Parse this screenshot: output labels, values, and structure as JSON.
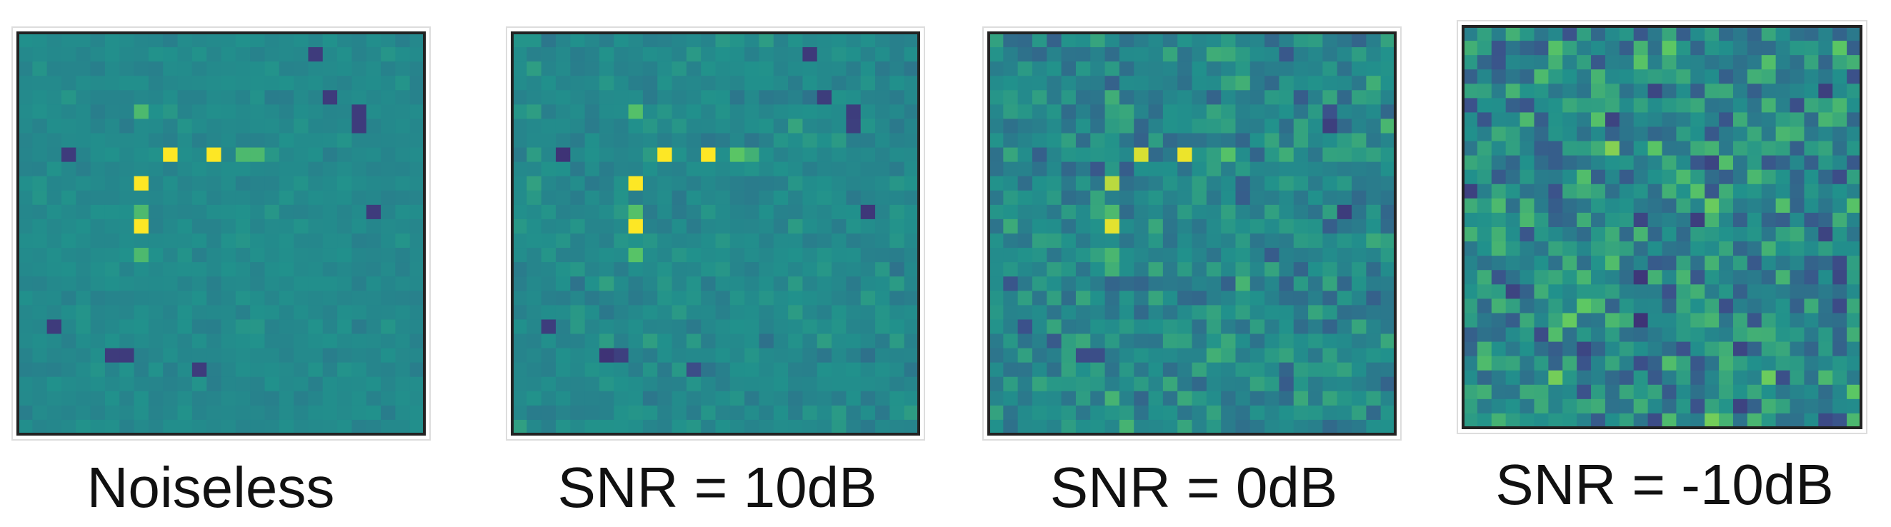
{
  "panels": [
    {
      "caption": "Noiseless"
    },
    {
      "caption": "SNR = 10dB"
    },
    {
      "caption": "SNR = 0dB"
    },
    {
      "caption": "SNR = -10dB"
    }
  ]
}
